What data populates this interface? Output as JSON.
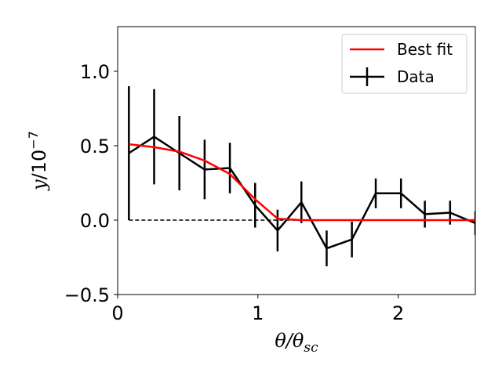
{
  "chart_data": {
    "type": "line",
    "title": "",
    "xlabel": "θ/θsc",
    "ylabel": "y/10⁻⁷",
    "xlim": [
      0,
      2.55
    ],
    "ylim": [
      -0.5,
      1.3
    ],
    "xticks": [
      0,
      1,
      2
    ],
    "xtick_labels": [
      "0",
      "1",
      "2"
    ],
    "yticks": [
      -0.5,
      0.0,
      0.5,
      1.0
    ],
    "ytick_labels": [
      "−0.5",
      "0.0",
      "0.5",
      "1.0"
    ],
    "grid": false,
    "legend_position": "top-right",
    "reference_line": {
      "y": 0,
      "style": "dashed",
      "color": "#000000"
    },
    "series": [
      {
        "name": "Best fit",
        "color": "#ff0000",
        "x": [
          0.08,
          0.26,
          0.44,
          0.62,
          0.8,
          0.98,
          1.14,
          1.31,
          1.49,
          1.67,
          1.84,
          2.02,
          2.19,
          2.37,
          2.55
        ],
        "y": [
          0.51,
          0.49,
          0.46,
          0.4,
          0.31,
          0.14,
          0.01,
          0.0,
          0.0,
          0.0,
          0.0,
          0.0,
          0.0,
          0.0,
          0.0
        ]
      },
      {
        "name": "Data",
        "color": "#000000",
        "x": [
          0.08,
          0.26,
          0.44,
          0.62,
          0.8,
          0.98,
          1.14,
          1.31,
          1.49,
          1.67,
          1.84,
          2.02,
          2.19,
          2.37,
          2.55
        ],
        "y": [
          0.45,
          0.56,
          0.45,
          0.34,
          0.35,
          0.1,
          -0.07,
          0.12,
          -0.19,
          -0.13,
          0.18,
          0.18,
          0.04,
          0.05,
          -0.02
        ],
        "yerr": [
          0.45,
          0.32,
          0.25,
          0.2,
          0.17,
          0.15,
          0.14,
          0.14,
          0.12,
          0.12,
          0.1,
          0.1,
          0.09,
          0.08,
          0.08
        ]
      }
    ]
  }
}
